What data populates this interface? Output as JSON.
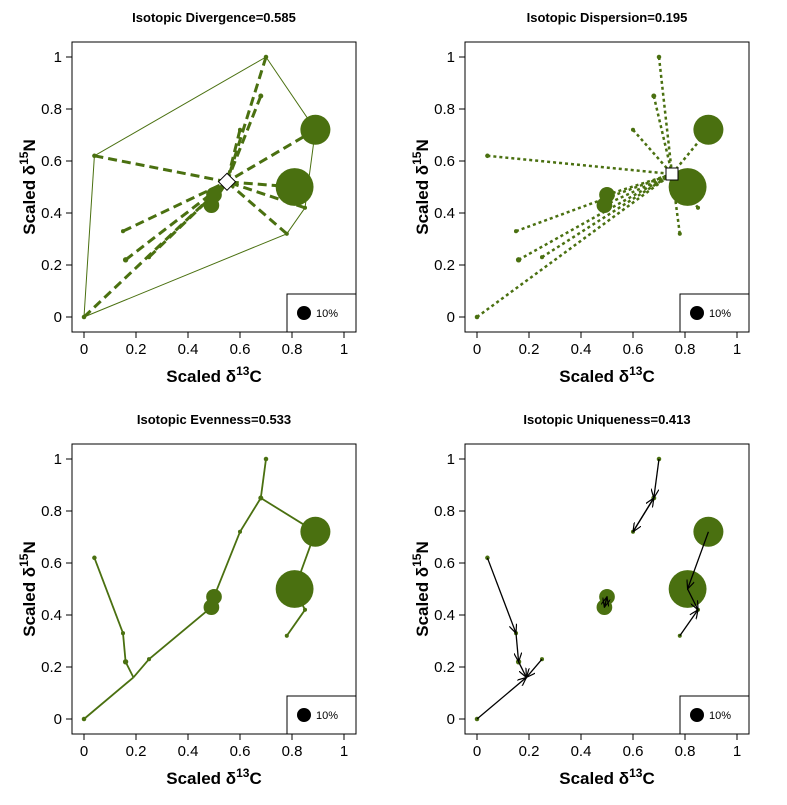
{
  "colors": {
    "points": "#4a7010",
    "lines": "#4a7010",
    "arrows": "#000000",
    "legend_dot": "#000000"
  },
  "axis_text": {
    "xlabel_main": "Scaled δ",
    "xlabel_sup": "13",
    "xlabel_end": "C",
    "ylabel_main": "Scaled δ",
    "ylabel_sup": "15",
    "ylabel_end": "N",
    "xticks": [
      "0",
      "0.2",
      "0.4",
      "0.6",
      "0.8",
      "1"
    ],
    "yticks": [
      "0",
      "0.2",
      "0.4",
      "0.6",
      "0.8",
      "1"
    ]
  },
  "legend": {
    "label": "10%"
  },
  "chart_data": [
    {
      "type": "scatter",
      "title": "Isotopic Divergence=0.585",
      "xlim": [
        0,
        1
      ],
      "ylim": [
        0,
        1
      ],
      "points": [
        {
          "x": 0.0,
          "y": 0.0,
          "w": 0.5
        },
        {
          "x": 0.04,
          "y": 0.62,
          "w": 0.5
        },
        {
          "x": 0.15,
          "y": 0.33,
          "w": 0.4
        },
        {
          "x": 0.16,
          "y": 0.22,
          "w": 0.7
        },
        {
          "x": 0.25,
          "y": 0.23,
          "w": 0.4
        },
        {
          "x": 0.49,
          "y": 0.43,
          "w": 6
        },
        {
          "x": 0.5,
          "y": 0.47,
          "w": 6
        },
        {
          "x": 0.6,
          "y": 0.72,
          "w": 0.4
        },
        {
          "x": 0.68,
          "y": 0.85,
          "w": 0.6
        },
        {
          "x": 0.7,
          "y": 1.0,
          "w": 0.5
        },
        {
          "x": 0.78,
          "y": 0.32,
          "w": 0.4
        },
        {
          "x": 0.85,
          "y": 0.42,
          "w": 0.4
        },
        {
          "x": 0.81,
          "y": 0.5,
          "w": 35
        },
        {
          "x": 0.89,
          "y": 0.72,
          "w": 22
        }
      ],
      "hull": [
        [
          0.0,
          0.0
        ],
        [
          0.78,
          0.32
        ],
        [
          0.85,
          0.42
        ],
        [
          0.89,
          0.72
        ],
        [
          0.7,
          1.0
        ],
        [
          0.04,
          0.62
        ]
      ],
      "center": {
        "x": 0.55,
        "y": 0.52
      },
      "links": "dashed_to_center"
    },
    {
      "type": "scatter",
      "title": "Isotopic Dispersion=0.195",
      "xlim": [
        0,
        1
      ],
      "ylim": [
        0,
        1
      ],
      "points": [
        {
          "x": 0.0,
          "y": 0.0,
          "w": 0.5
        },
        {
          "x": 0.04,
          "y": 0.62,
          "w": 0.5
        },
        {
          "x": 0.15,
          "y": 0.33,
          "w": 0.4
        },
        {
          "x": 0.16,
          "y": 0.22,
          "w": 0.7
        },
        {
          "x": 0.25,
          "y": 0.23,
          "w": 0.4
        },
        {
          "x": 0.49,
          "y": 0.43,
          "w": 6
        },
        {
          "x": 0.5,
          "y": 0.47,
          "w": 6
        },
        {
          "x": 0.6,
          "y": 0.72,
          "w": 0.4
        },
        {
          "x": 0.68,
          "y": 0.85,
          "w": 0.6
        },
        {
          "x": 0.7,
          "y": 1.0,
          "w": 0.5
        },
        {
          "x": 0.78,
          "y": 0.32,
          "w": 0.4
        },
        {
          "x": 0.85,
          "y": 0.42,
          "w": 0.4
        },
        {
          "x": 0.81,
          "y": 0.5,
          "w": 35
        },
        {
          "x": 0.89,
          "y": 0.72,
          "w": 22
        }
      ],
      "center": {
        "x": 0.75,
        "y": 0.55
      },
      "links": "dotted_to_center"
    },
    {
      "type": "scatter",
      "title": "Isotopic Evenness=0.533",
      "xlim": [
        0,
        1
      ],
      "ylim": [
        0,
        1
      ],
      "points": [
        {
          "x": 0.0,
          "y": 0.0,
          "w": 0.5
        },
        {
          "x": 0.04,
          "y": 0.62,
          "w": 0.5
        },
        {
          "x": 0.15,
          "y": 0.33,
          "w": 0.4
        },
        {
          "x": 0.16,
          "y": 0.22,
          "w": 0.7
        },
        {
          "x": 0.25,
          "y": 0.23,
          "w": 0.4
        },
        {
          "x": 0.49,
          "y": 0.43,
          "w": 6
        },
        {
          "x": 0.5,
          "y": 0.47,
          "w": 6
        },
        {
          "x": 0.6,
          "y": 0.72,
          "w": 0.4
        },
        {
          "x": 0.68,
          "y": 0.85,
          "w": 0.6
        },
        {
          "x": 0.7,
          "y": 1.0,
          "w": 0.5
        },
        {
          "x": 0.78,
          "y": 0.32,
          "w": 0.4
        },
        {
          "x": 0.85,
          "y": 0.42,
          "w": 0.4
        },
        {
          "x": 0.81,
          "y": 0.5,
          "w": 35
        },
        {
          "x": 0.89,
          "y": 0.72,
          "w": 22
        }
      ],
      "tree": [
        [
          [
            0.0,
            0.0
          ],
          [
            0.19,
            0.16
          ]
        ],
        [
          [
            0.19,
            0.16
          ],
          [
            0.16,
            0.22
          ]
        ],
        [
          [
            0.16,
            0.22
          ],
          [
            0.15,
            0.33
          ]
        ],
        [
          [
            0.15,
            0.33
          ],
          [
            0.04,
            0.62
          ]
        ],
        [
          [
            0.19,
            0.16
          ],
          [
            0.25,
            0.23
          ]
        ],
        [
          [
            0.25,
            0.23
          ],
          [
            0.49,
            0.43
          ]
        ],
        [
          [
            0.49,
            0.43
          ],
          [
            0.5,
            0.47
          ]
        ],
        [
          [
            0.5,
            0.47
          ],
          [
            0.6,
            0.72
          ]
        ],
        [
          [
            0.6,
            0.72
          ],
          [
            0.68,
            0.85
          ]
        ],
        [
          [
            0.68,
            0.85
          ],
          [
            0.7,
            1.0
          ]
        ],
        [
          [
            0.68,
            0.85
          ],
          [
            0.89,
            0.72
          ]
        ],
        [
          [
            0.89,
            0.72
          ],
          [
            0.81,
            0.5
          ]
        ],
        [
          [
            0.81,
            0.5
          ],
          [
            0.85,
            0.42
          ]
        ],
        [
          [
            0.85,
            0.42
          ],
          [
            0.78,
            0.32
          ]
        ]
      ]
    },
    {
      "type": "scatter",
      "title": "Isotopic Uniqueness=0.413",
      "xlim": [
        0,
        1
      ],
      "ylim": [
        0,
        1
      ],
      "points": [
        {
          "x": 0.0,
          "y": 0.0,
          "w": 0.5
        },
        {
          "x": 0.04,
          "y": 0.62,
          "w": 0.5
        },
        {
          "x": 0.15,
          "y": 0.33,
          "w": 0.4
        },
        {
          "x": 0.16,
          "y": 0.22,
          "w": 0.7
        },
        {
          "x": 0.25,
          "y": 0.23,
          "w": 0.4
        },
        {
          "x": 0.49,
          "y": 0.43,
          "w": 6
        },
        {
          "x": 0.5,
          "y": 0.47,
          "w": 6
        },
        {
          "x": 0.6,
          "y": 0.72,
          "w": 0.4
        },
        {
          "x": 0.68,
          "y": 0.85,
          "w": 0.6
        },
        {
          "x": 0.7,
          "y": 1.0,
          "w": 0.5
        },
        {
          "x": 0.78,
          "y": 0.32,
          "w": 0.4
        },
        {
          "x": 0.85,
          "y": 0.42,
          "w": 0.4
        },
        {
          "x": 0.81,
          "y": 0.5,
          "w": 35
        },
        {
          "x": 0.89,
          "y": 0.72,
          "w": 22
        }
      ],
      "arrows": [
        [
          [
            0.0,
            0.0
          ],
          [
            0.19,
            0.16
          ]
        ],
        [
          [
            0.04,
            0.62
          ],
          [
            0.15,
            0.33
          ]
        ],
        [
          [
            0.15,
            0.33
          ],
          [
            0.16,
            0.22
          ]
        ],
        [
          [
            0.16,
            0.22
          ],
          [
            0.19,
            0.16
          ]
        ],
        [
          [
            0.25,
            0.23
          ],
          [
            0.19,
            0.16
          ]
        ],
        [
          [
            0.49,
            0.43
          ],
          [
            0.5,
            0.47
          ]
        ],
        [
          [
            0.5,
            0.47
          ],
          [
            0.49,
            0.43
          ]
        ],
        [
          [
            0.6,
            0.72
          ],
          [
            0.68,
            0.85
          ]
        ],
        [
          [
            0.68,
            0.85
          ],
          [
            0.6,
            0.72
          ]
        ],
        [
          [
            0.7,
            1.0
          ],
          [
            0.68,
            0.85
          ]
        ],
        [
          [
            0.89,
            0.72
          ],
          [
            0.81,
            0.5
          ]
        ],
        [
          [
            0.81,
            0.5
          ],
          [
            0.85,
            0.42
          ]
        ],
        [
          [
            0.78,
            0.32
          ],
          [
            0.85,
            0.42
          ]
        ]
      ]
    }
  ]
}
